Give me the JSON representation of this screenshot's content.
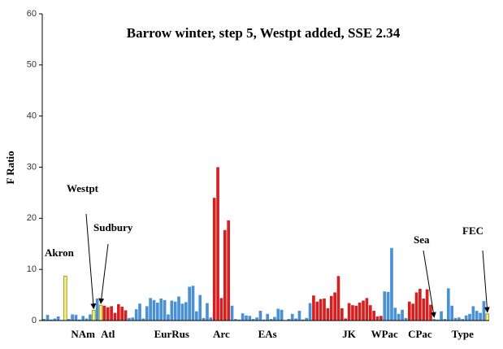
{
  "chart_data": {
    "type": "bar",
    "title": "Barrow winter, step 5, Westpt added, SSE 2.34",
    "ylabel": "F Ratio",
    "ylim": [
      0,
      60
    ],
    "yticks": [
      0,
      10,
      20,
      30,
      40,
      50,
      60
    ],
    "annotations": [
      "Akron",
      "Westpt",
      "Sudbury",
      "Sea",
      "FEC"
    ],
    "categories": [
      null,
      null,
      null,
      null,
      null,
      null,
      null,
      null,
      null,
      null,
      null,
      "NAm",
      null,
      null,
      null,
      null,
      null,
      null,
      "Atl",
      null,
      null,
      null,
      null,
      null,
      null,
      null,
      null,
      null,
      null,
      null,
      null,
      null,
      null,
      null,
      null,
      null,
      "EurRus",
      null,
      null,
      null,
      null,
      null,
      null,
      null,
      null,
      null,
      null,
      null,
      null,
      null,
      "Arc",
      null,
      null,
      null,
      null,
      null,
      null,
      null,
      null,
      null,
      null,
      null,
      null,
      "EAs",
      null,
      null,
      null,
      null,
      null,
      null,
      null,
      null,
      null,
      null,
      null,
      null,
      null,
      null,
      null,
      null,
      null,
      null,
      null,
      null,
      null,
      null,
      "JK",
      null,
      null,
      null,
      null,
      null,
      null,
      null,
      null,
      null,
      "WPac",
      null,
      null,
      null,
      null,
      null,
      null,
      null,
      null,
      null,
      "CPac",
      null,
      null,
      null,
      null,
      null,
      null,
      null,
      null,
      null,
      null,
      null,
      "Type",
      null,
      null,
      null,
      null,
      null,
      null,
      null
    ],
    "values": [
      0.3,
      1.1,
      0.2,
      0.4,
      0.8,
      0.1,
      8.7,
      0.3,
      1.2,
      1.1,
      0.2,
      0.9,
      0.4,
      1.2,
      2.0,
      4.3,
      3.0,
      2.9,
      2.6,
      2.8,
      1.5,
      3.2,
      2.7,
      2.0,
      0.5,
      0.6,
      2.2,
      3.3,
      0.4,
      2.8,
      4.4,
      4.0,
      3.5,
      4.3,
      4.0,
      1.2,
      3.9,
      3.7,
      4.7,
      3.3,
      3.6,
      6.6,
      6.8,
      1.8,
      5.0,
      0.5,
      3.4,
      0.6,
      24,
      30,
      4.4,
      17.7,
      19.6,
      2.9,
      0.3,
      0.2,
      1.4,
      1.0,
      0.9,
      0.3,
      0.6,
      1.9,
      0.2,
      1.3,
      0.3,
      0.7,
      2.3,
      2.1,
      0.1,
      0.3,
      1.3,
      0.4,
      1.9,
      0.2,
      0.5,
      3.4,
      4.9,
      3.7,
      4.2,
      4.3,
      2.4,
      4.8,
      5.5,
      8.7,
      2.4,
      0.4,
      3.4,
      3.0,
      2.9,
      3.5,
      3.9,
      4.4,
      3.0,
      1.9,
      0.8,
      0.9,
      5.7,
      5.6,
      14.2,
      2.5,
      1.3,
      2.1,
      0.5,
      3.7,
      3.3,
      5.5,
      6.2,
      4.3,
      6.1,
      3.1,
      0.3,
      0.2,
      1.8,
      0.3,
      6.3,
      2.9,
      0.5,
      0.6,
      0.3,
      1.0,
      1.3,
      2.8,
      1.9,
      1.5,
      3.8,
      1.3
    ],
    "colors": [
      "#4a90d4",
      "#4a90d4",
      "#4a90d4",
      "#4a90d4",
      "#4a90d4",
      "#4a90d4",
      "#f4f07a",
      "#4a90d4",
      "#4a90d4",
      "#4a90d4",
      "#4a90d4",
      "#4a90d4",
      "#4a90d4",
      "#4a90d4",
      "#f4f07a",
      "#4a90d4",
      "#f4f07a",
      "#d42020",
      "#d42020",
      "#d42020",
      "#d42020",
      "#d42020",
      "#d42020",
      "#d42020",
      "#4a90d4",
      "#4a90d4",
      "#4a90d4",
      "#4a90d4",
      "#4a90d4",
      "#4a90d4",
      "#4a90d4",
      "#4a90d4",
      "#4a90d4",
      "#4a90d4",
      "#4a90d4",
      "#4a90d4",
      "#4a90d4",
      "#4a90d4",
      "#4a90d4",
      "#4a90d4",
      "#4a90d4",
      "#4a90d4",
      "#4a90d4",
      "#4a90d4",
      "#4a90d4",
      "#4a90d4",
      "#4a90d4",
      "#4a90d4",
      "#d42020",
      "#d42020",
      "#d42020",
      "#d42020",
      "#d42020",
      "#4a90d4",
      "#4a90d4",
      "#4a90d4",
      "#4a90d4",
      "#4a90d4",
      "#4a90d4",
      "#4a90d4",
      "#4a90d4",
      "#4a90d4",
      "#4a90d4",
      "#4a90d4",
      "#4a90d4",
      "#4a90d4",
      "#4a90d4",
      "#4a90d4",
      "#4a90d4",
      "#4a90d4",
      "#4a90d4",
      "#4a90d4",
      "#4a90d4",
      "#4a90d4",
      "#4a90d4",
      "#4a90d4",
      "#d42020",
      "#d42020",
      "#d42020",
      "#d42020",
      "#d42020",
      "#d42020",
      "#d42020",
      "#d42020",
      "#d42020",
      "#d42020",
      "#d42020",
      "#d42020",
      "#d42020",
      "#d42020",
      "#d42020",
      "#d42020",
      "#d42020",
      "#d42020",
      "#d42020",
      "#d42020",
      "#4a90d4",
      "#4a90d4",
      "#4a90d4",
      "#4a90d4",
      "#4a90d4",
      "#4a90d4",
      "#4a90d4",
      "#d42020",
      "#d42020",
      "#d42020",
      "#d42020",
      "#d42020",
      "#d42020",
      "#d42020",
      "#4a90d4",
      "#4a90d4",
      "#4a90d4",
      "#4a90d4",
      "#4a90d4",
      "#4a90d4",
      "#4a90d4",
      "#4a90d4",
      "#4a90d4",
      "#4a90d4",
      "#4a90d4",
      "#4a90d4",
      "#4a90d4",
      "#4a90d4",
      "#4a90d4",
      "#f4f07a"
    ]
  }
}
